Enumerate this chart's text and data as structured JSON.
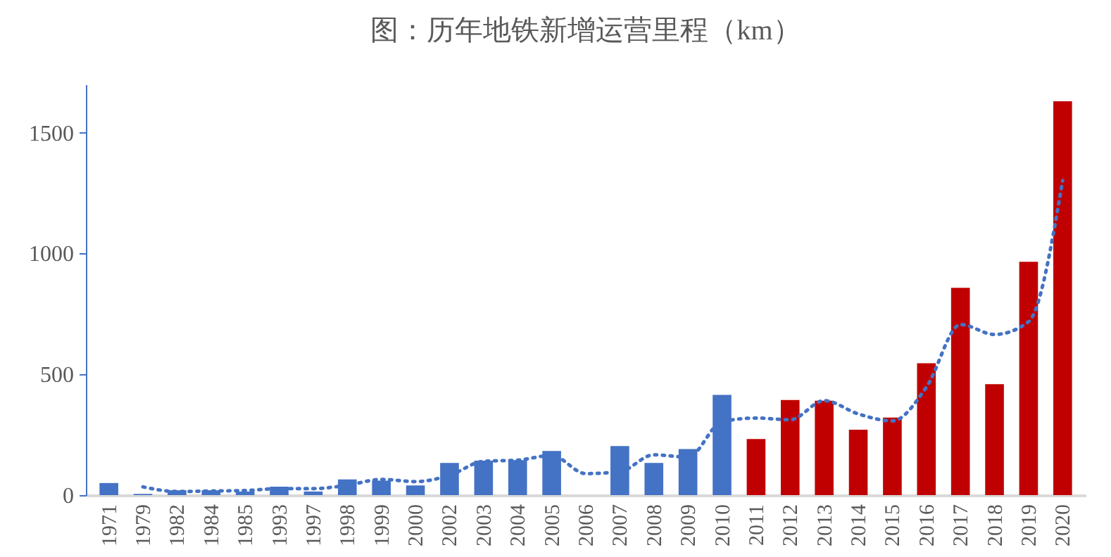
{
  "chart_data": {
    "type": "bar",
    "title": "图：历年地铁新增运营里程（km）",
    "categories": [
      "1971",
      "1979",
      "1982",
      "1984",
      "1985",
      "1993",
      "1997",
      "1998",
      "1999",
      "2000",
      "2002",
      "2003",
      "2004",
      "2005",
      "2006",
      "2007",
      "2008",
      "2009",
      "2010",
      "2011",
      "2012",
      "2013",
      "2014",
      "2015",
      "2016",
      "2017",
      "2018",
      "2019",
      "2020"
    ],
    "series": [
      {
        "values": [
          50,
          5,
          20,
          20,
          15,
          35,
          15,
          65,
          60,
          40,
          133,
          143,
          145,
          183,
          null,
          203,
          133,
          191,
          415,
          232,
          394,
          391,
          271,
          321,
          546,
          858,
          459,
          966,
          1630
        ],
        "colors": [
          "#4472c4",
          "#4472c4",
          "#4472c4",
          "#4472c4",
          "#4472c4",
          "#4472c4",
          "#4472c4",
          "#4472c4",
          "#4472c4",
          "#4472c4",
          "#4472c4",
          "#4472c4",
          "#4472c4",
          "#4472c4",
          "#4472c4",
          "#4472c4",
          "#4472c4",
          "#4472c4",
          "#4472c4",
          "#c00000",
          "#c00000",
          "#c00000",
          "#c00000",
          "#c00000",
          "#c00000",
          "#c00000",
          "#c00000",
          "#c00000",
          "#c00000"
        ]
      },
      {
        "type": "line",
        "color": "#4472c4",
        "line_style": "dotted",
        "values": [
          null,
          34,
          15,
          17,
          19,
          27,
          27,
          41,
          65,
          56,
          82,
          140,
          145,
          164,
          89,
          97,
          167,
          157,
          304,
          319,
          312,
          391,
          336,
          307,
          447,
          706,
          665,
          718,
          1302
        ]
      }
    ],
    "ylim": [
      0,
      1700
    ],
    "yticks": [
      0,
      500,
      1000,
      1500
    ],
    "grid": false
  }
}
